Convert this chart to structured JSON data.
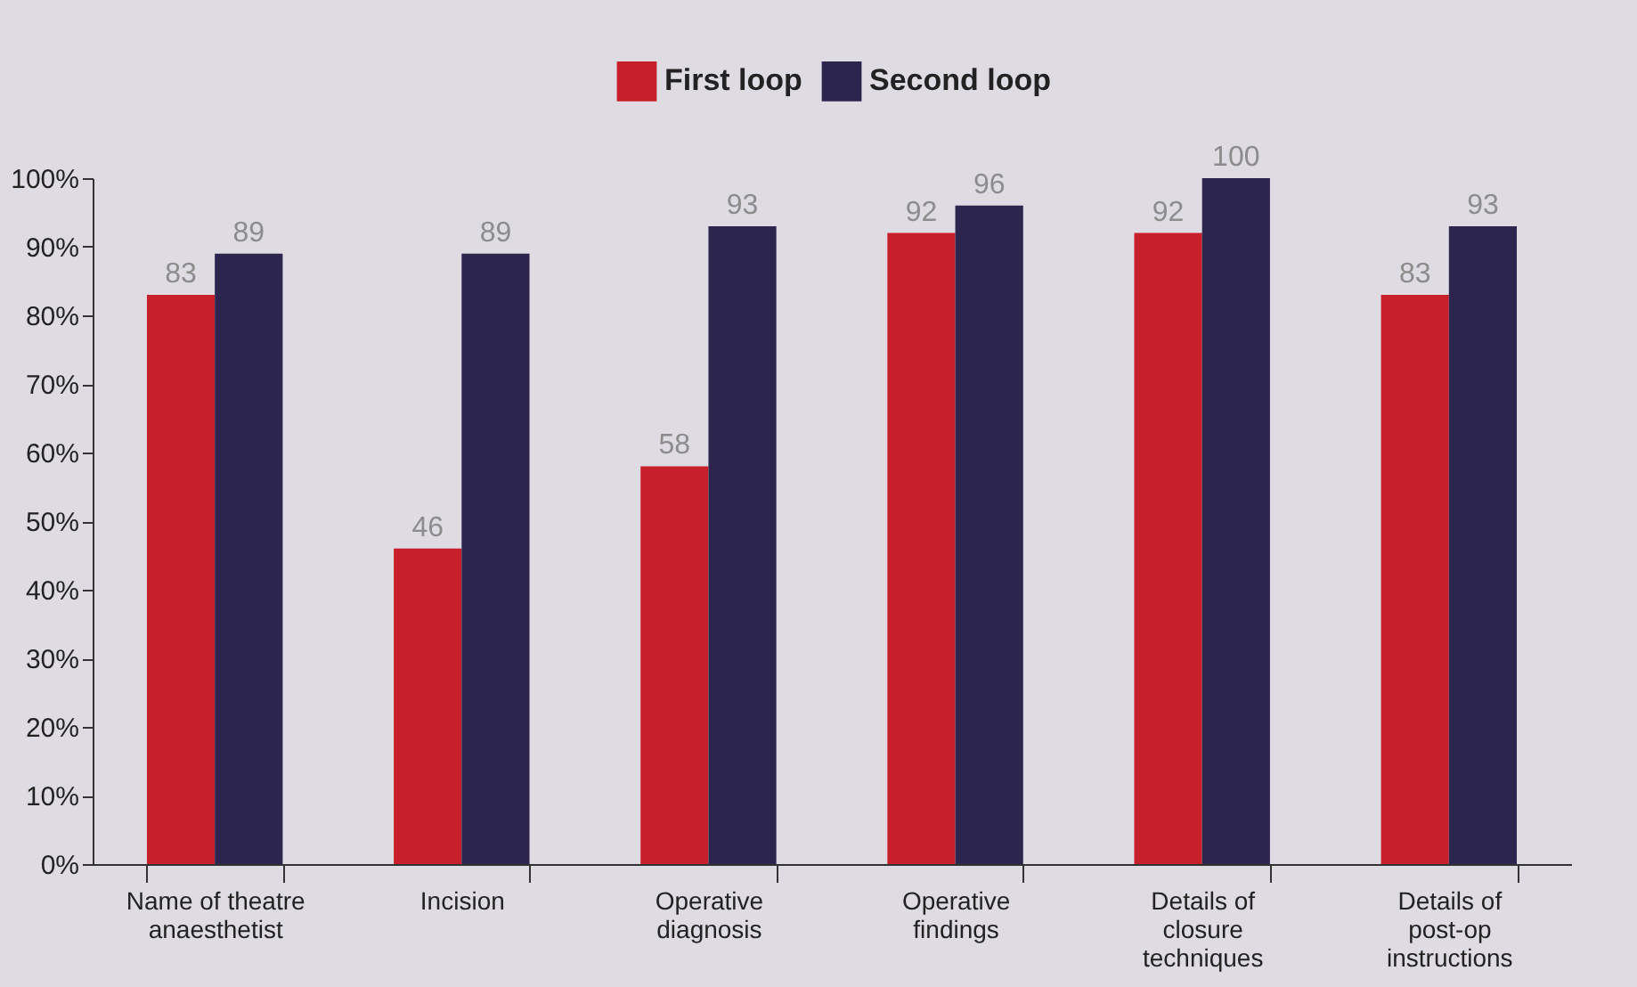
{
  "chart_data": {
    "type": "bar",
    "categories": [
      "Name of theatre anaesthetist",
      "Incision",
      "Operative diagnosis",
      "Operative findings",
      "Details of closure techniques",
      "Details of post-op instructions"
    ],
    "series": [
      {
        "name": "First loop",
        "color": "#c8202a",
        "values": [
          83,
          46,
          58,
          92,
          92,
          83
        ]
      },
      {
        "name": "Second loop",
        "color": "#2c254d",
        "values": [
          89,
          89,
          93,
          96,
          100,
          93
        ]
      }
    ],
    "ylim": [
      0,
      100
    ],
    "yticks": [
      {
        "value": 0,
        "label": "0%"
      },
      {
        "value": 10,
        "label": "10%"
      },
      {
        "value": 20,
        "label": "20%"
      },
      {
        "value": 30,
        "label": "30%"
      },
      {
        "value": 40,
        "label": "40%"
      },
      {
        "value": 50,
        "label": "50%"
      },
      {
        "value": 60,
        "label": "60%"
      },
      {
        "value": 70,
        "label": "70%"
      },
      {
        "value": 80,
        "label": "80%"
      },
      {
        "value": 90,
        "label": "90%"
      },
      {
        "value": 100,
        "label": "100%"
      }
    ],
    "data_labels": true,
    "legend": "top",
    "grid": false
  }
}
